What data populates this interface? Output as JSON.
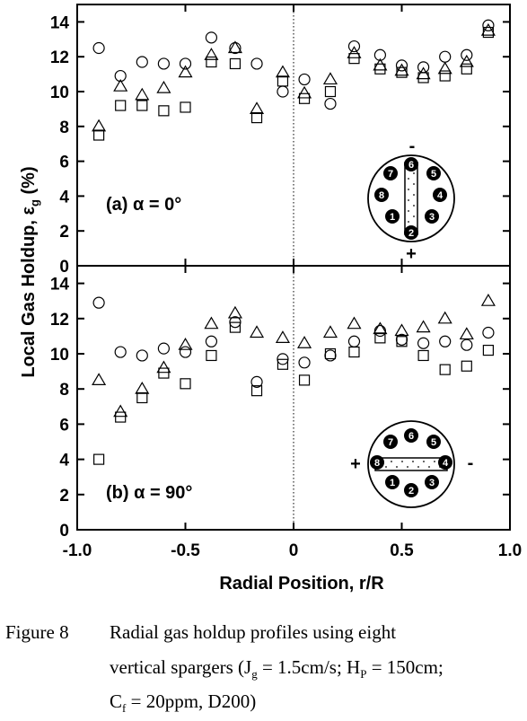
{
  "chart_data": {
    "type": "scatter",
    "xlabel": "Radial Position, r/R",
    "ylabel": "Local Gas Holdup, εg (%)",
    "xlim": [
      -1.0,
      1.0
    ],
    "xticks": [
      "-1.0",
      "-0.5",
      "0",
      "0.5",
      "1.0"
    ],
    "ylim": [
      0,
      15
    ],
    "yticks": [
      "0",
      "2",
      "4",
      "6",
      "8",
      "10",
      "12",
      "14"
    ],
    "panels": [
      {
        "label": "(a)",
        "alpha": "α = 0°",
        "inset": {
          "holes": [
            "1",
            "2",
            "3",
            "4",
            "5",
            "6",
            "7",
            "8"
          ],
          "plus": "+",
          "minus": "-"
        },
        "series": [
          {
            "marker": "circle",
            "x": [
              -0.9,
              -0.8,
              -0.7,
              -0.6,
              -0.5,
              -0.38,
              -0.27,
              -0.17,
              -0.05,
              0.05,
              0.17,
              0.28,
              0.4,
              0.5,
              0.6,
              0.7,
              0.8,
              0.9
            ],
            "y": [
              12.5,
              10.9,
              11.7,
              11.6,
              11.6,
              13.1,
              12.5,
              11.6,
              10.0,
              10.7,
              9.3,
              12.6,
              12.1,
              11.5,
              11.4,
              12.0,
              12.1,
              13.8
            ]
          },
          {
            "marker": "triangle",
            "x": [
              -0.9,
              -0.8,
              -0.7,
              -0.6,
              -0.5,
              -0.38,
              -0.27,
              -0.17,
              -0.05,
              0.05,
              0.17,
              0.28,
              0.4,
              0.5,
              0.6,
              0.7,
              0.8,
              0.9
            ],
            "y": [
              8.0,
              10.3,
              9.8,
              10.2,
              11.1,
              12.1,
              12.5,
              9.0,
              11.1,
              9.9,
              10.7,
              12.2,
              11.5,
              11.2,
              11.0,
              11.3,
              11.7,
              13.5
            ]
          },
          {
            "marker": "square",
            "x": [
              -0.9,
              -0.8,
              -0.7,
              -0.6,
              -0.5,
              -0.38,
              -0.27,
              -0.17,
              -0.05,
              0.05,
              0.17,
              0.28,
              0.4,
              0.5,
              0.6,
              0.7,
              0.8,
              0.9
            ],
            "y": [
              7.5,
              9.2,
              9.2,
              8.9,
              9.1,
              11.7,
              11.6,
              8.5,
              10.6,
              9.6,
              10.0,
              11.9,
              11.3,
              11.1,
              10.8,
              10.9,
              11.3,
              13.4
            ]
          }
        ]
      },
      {
        "label": "(b)",
        "alpha": "α = 90°",
        "inset": {
          "holes": [
            "1",
            "2",
            "3",
            "4",
            "5",
            "6",
            "7",
            "8"
          ],
          "plus": "+",
          "minus": "-"
        },
        "series": [
          {
            "marker": "circle",
            "x": [
              -0.9,
              -0.8,
              -0.7,
              -0.6,
              -0.5,
              -0.38,
              -0.27,
              -0.17,
              -0.05,
              0.05,
              0.17,
              0.28,
              0.4,
              0.5,
              0.6,
              0.7,
              0.8,
              0.9
            ],
            "y": [
              12.9,
              10.1,
              9.9,
              10.3,
              10.1,
              10.7,
              11.8,
              8.4,
              9.7,
              9.5,
              9.9,
              10.7,
              11.3,
              10.8,
              10.6,
              10.7,
              10.5,
              11.2
            ]
          },
          {
            "marker": "triangle",
            "x": [
              -0.9,
              -0.8,
              -0.7,
              -0.6,
              -0.5,
              -0.38,
              -0.27,
              -0.17,
              -0.05,
              0.05,
              0.17,
              0.28,
              0.4,
              0.5,
              0.6,
              0.7,
              0.8,
              0.9
            ],
            "y": [
              8.5,
              6.7,
              8.0,
              9.2,
              10.5,
              11.7,
              12.3,
              11.2,
              10.9,
              10.6,
              11.2,
              11.7,
              11.4,
              11.3,
              11.5,
              12.0,
              11.1,
              13.0
            ]
          },
          {
            "marker": "square",
            "x": [
              -0.9,
              -0.8,
              -0.7,
              -0.6,
              -0.5,
              -0.38,
              -0.27,
              -0.17,
              -0.05,
              0.05,
              0.17,
              0.28,
              0.4,
              0.5,
              0.6,
              0.7,
              0.8,
              0.9
            ],
            "y": [
              4.0,
              6.4,
              7.5,
              8.9,
              8.3,
              9.9,
              11.5,
              7.9,
              9.4,
              8.5,
              10.0,
              10.1,
              10.9,
              10.7,
              9.9,
              9.1,
              9.3,
              10.2
            ]
          }
        ]
      }
    ]
  },
  "caption": {
    "figure_number": "Figure 8",
    "line1": "Radial gas holdup profiles using eight",
    "line2_pre": "vertical spargers (J",
    "line2_sub1": "g",
    "line2_mid": " = 1.5cm/s; H",
    "line2_sub2": "P",
    "line2_post": " = 150cm;",
    "line3_pre": "C",
    "line3_sub": "f",
    "line3_post": " = 20ppm, D200)"
  }
}
